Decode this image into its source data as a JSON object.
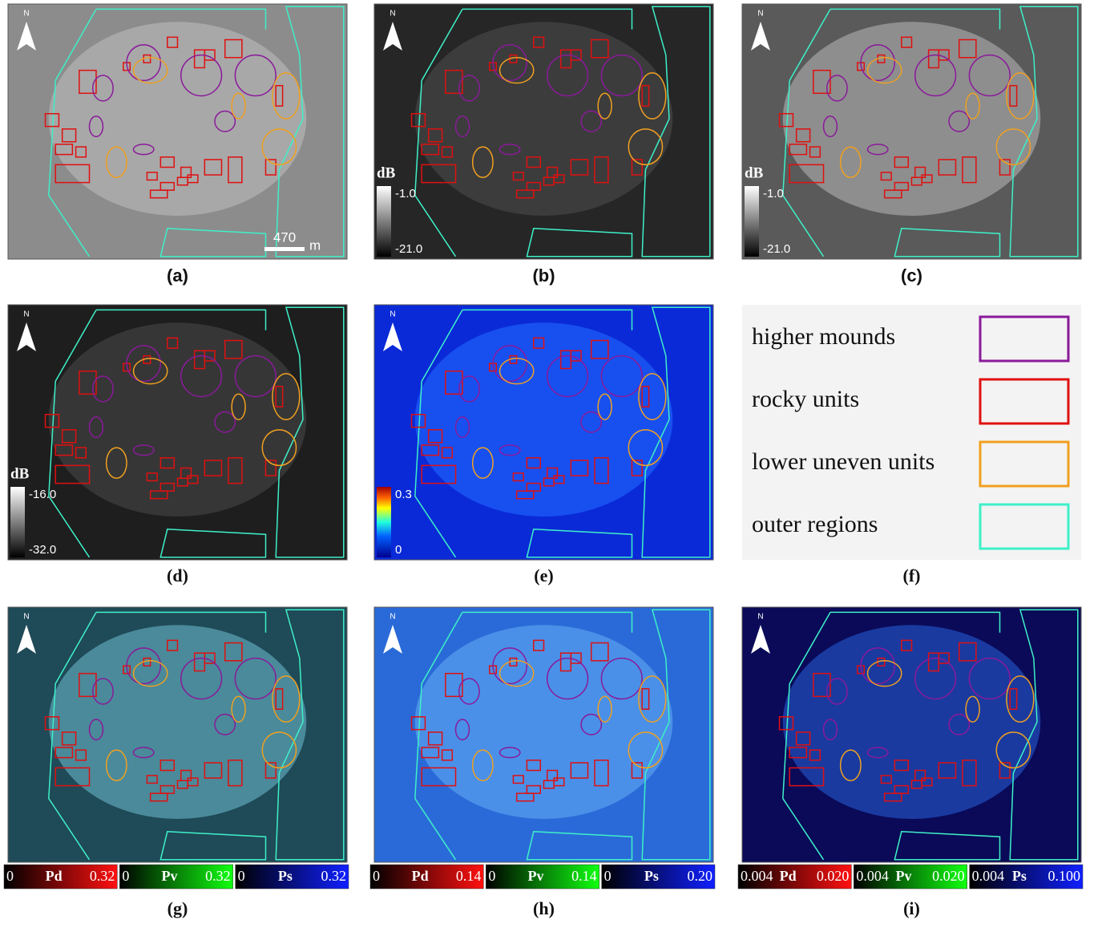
{
  "panels": [
    {
      "label": "(a)",
      "north": "N",
      "scale_bar": {
        "value": "470",
        "unit": "m"
      }
    },
    {
      "label": "(b)",
      "north": "N",
      "colorbar": {
        "unit": "dB",
        "max": "-1.0",
        "min": "-21.0"
      }
    },
    {
      "label": "(c)",
      "north": "N",
      "colorbar": {
        "unit": "dB",
        "max": "-1.0",
        "min": "-21.0"
      }
    },
    {
      "label": "(d)",
      "north": "N",
      "colorbar": {
        "unit": "dB",
        "max": "-16.0",
        "min": "-32.0"
      }
    },
    {
      "label": "(e)",
      "north": "N",
      "colorbar": {
        "max": "0.3",
        "min": "0"
      }
    },
    {
      "label": "(f)",
      "legend": [
        "higher mounds",
        "rocky units",
        "lower uneven units",
        "outer regions"
      ]
    },
    {
      "label": "(g)",
      "north": "N",
      "channels": [
        {
          "name": "Pd",
          "min": "0",
          "max": "0.32"
        },
        {
          "name": "Pv",
          "min": "0",
          "max": "0.32"
        },
        {
          "name": "Ps",
          "min": "0",
          "max": "0.32"
        }
      ]
    },
    {
      "label": "(h)",
      "north": "N",
      "channels": [
        {
          "name": "Pd",
          "min": "0",
          "max": "0.14"
        },
        {
          "name": "Pv",
          "min": "0",
          "max": "0.14"
        },
        {
          "name": "Ps",
          "min": "0",
          "max": "0.20"
        }
      ]
    },
    {
      "label": "(i)",
      "north": "N",
      "channels": [
        {
          "name": "Pd",
          "min": "0.004",
          "max": "0.020"
        },
        {
          "name": "Pv",
          "min": "0.004",
          "max": "0.020"
        },
        {
          "name": "Ps",
          "min": "0.004",
          "max": "0.100"
        }
      ]
    }
  ]
}
